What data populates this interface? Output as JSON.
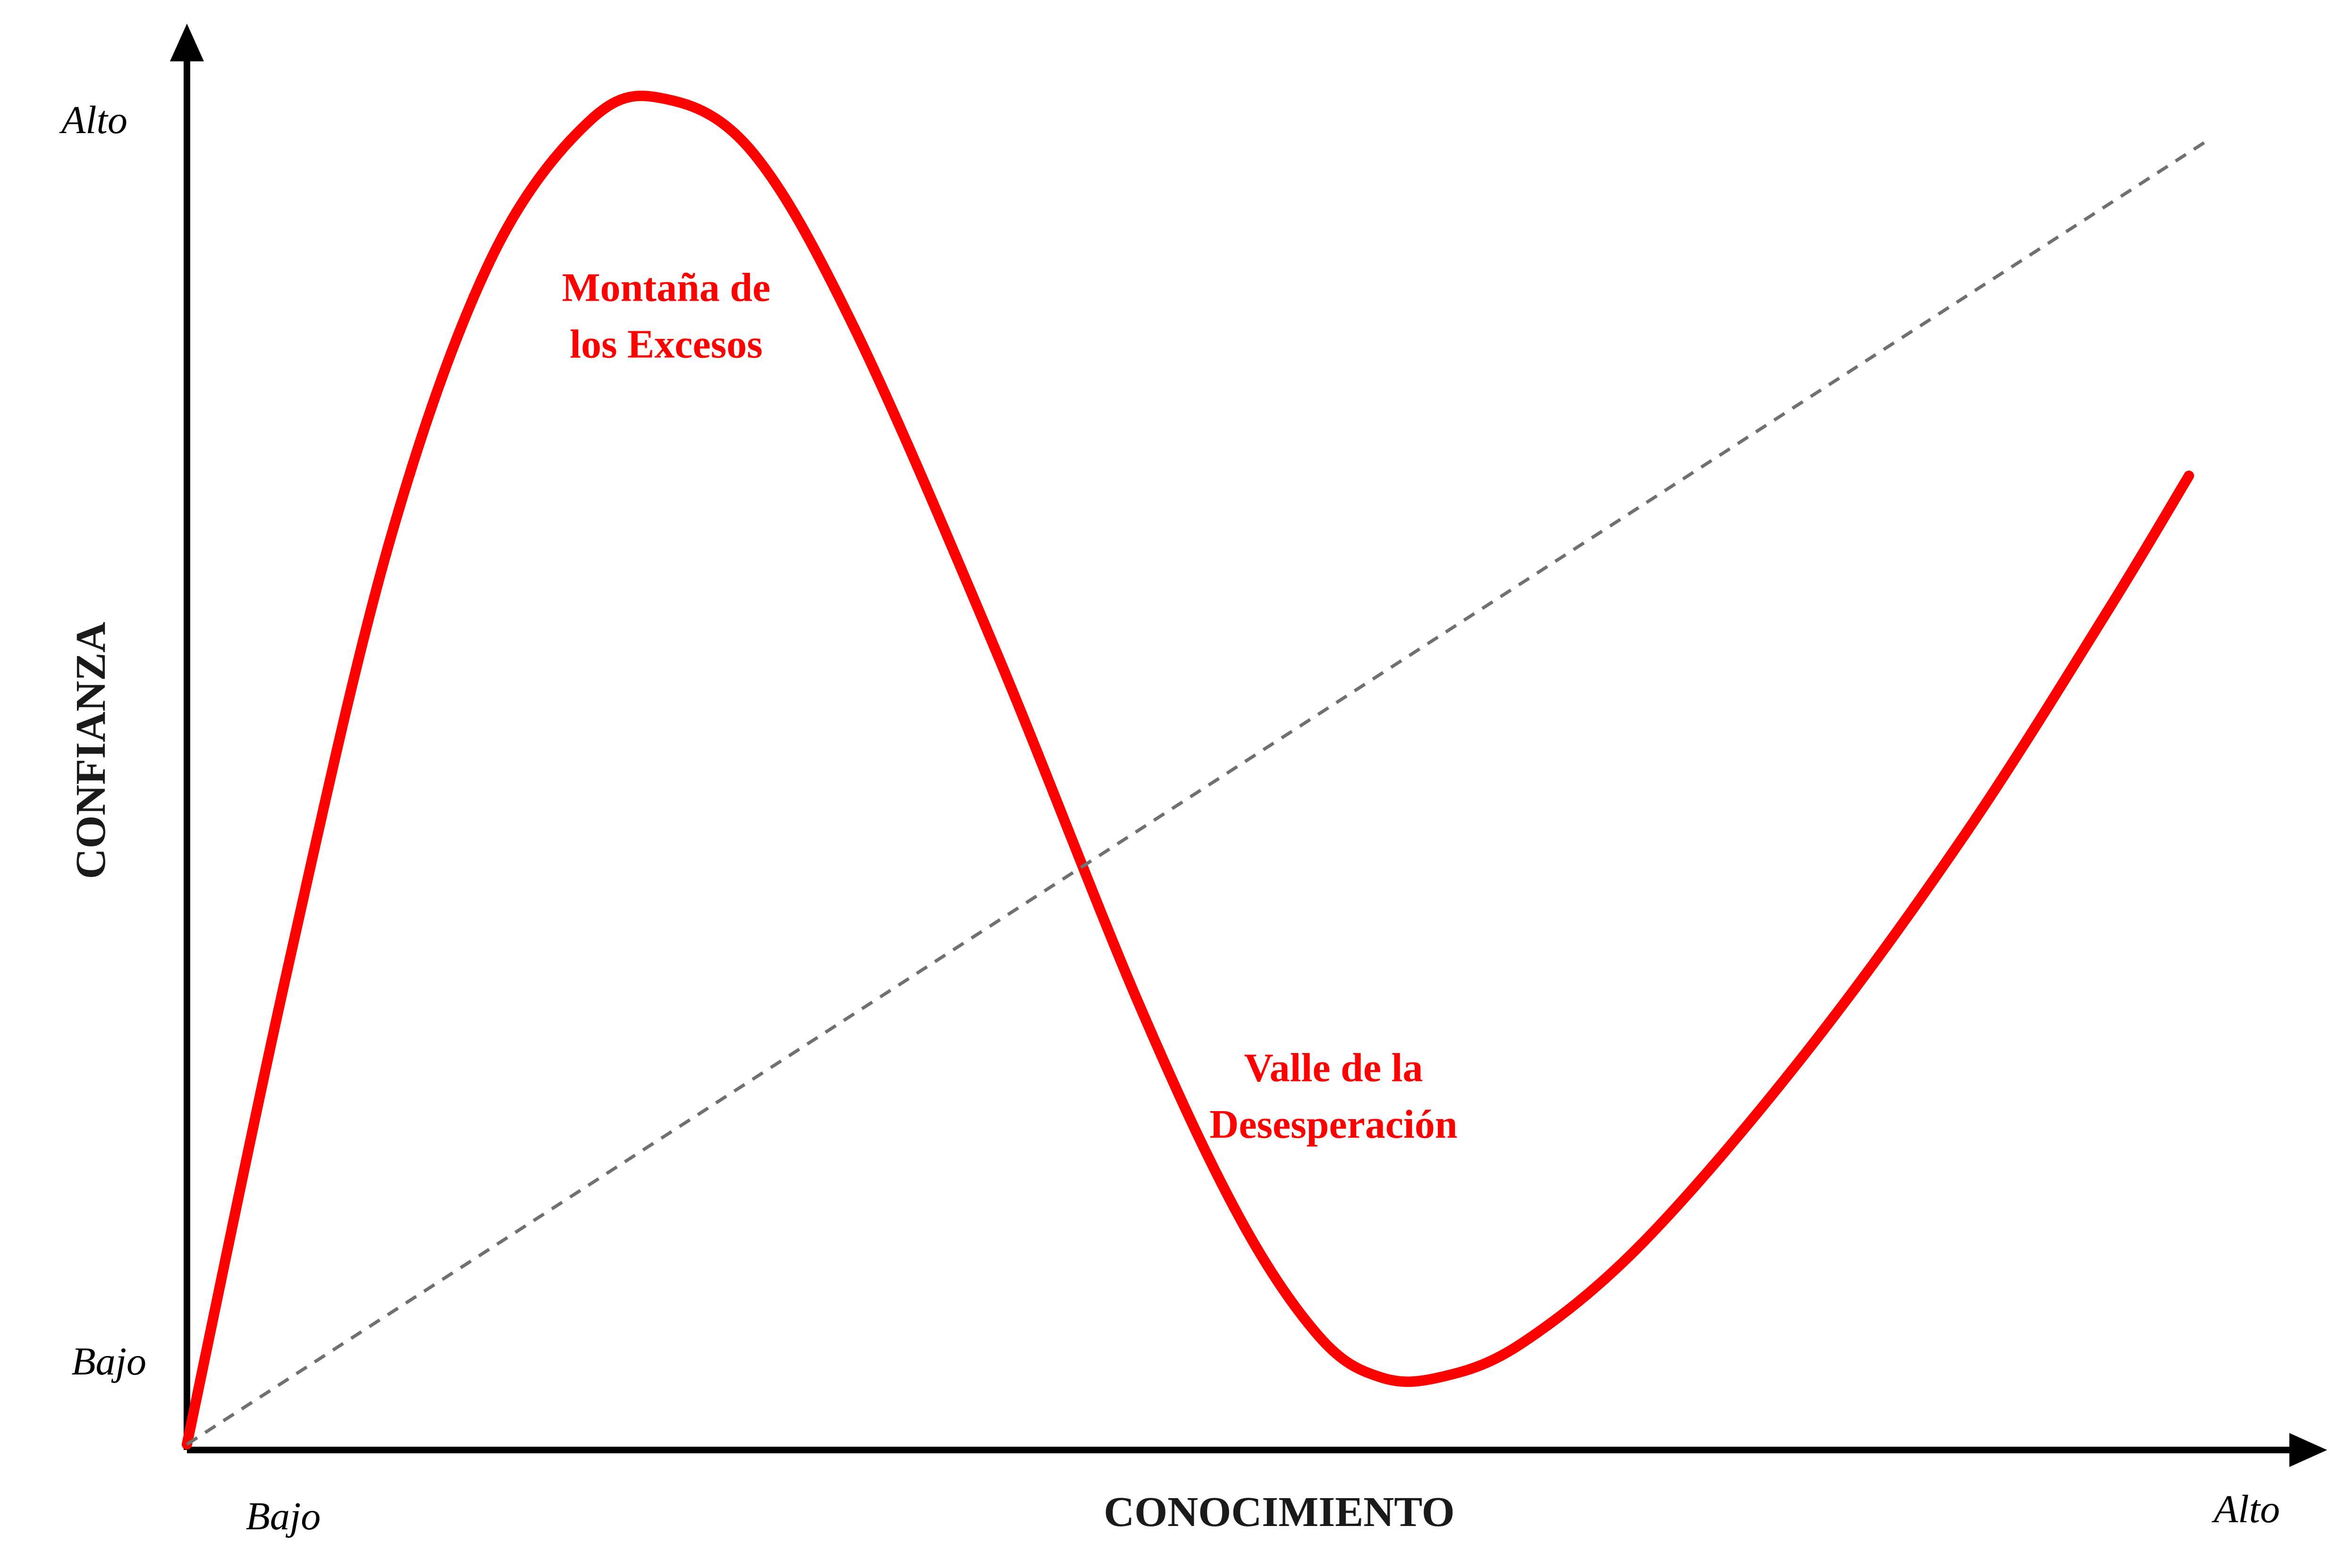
{
  "chart_data": {
    "type": "line",
    "title": "",
    "xlabel": "CONOCIMIENTO",
    "ylabel": "CONFIANZA",
    "x_ticks": {
      "low": "Bajo",
      "high": "Alto"
    },
    "y_ticks": {
      "low": "Bajo",
      "high": "Alto"
    },
    "xlim": [
      0,
      1
    ],
    "ylim": [
      0,
      1
    ],
    "grid": false,
    "series": [
      {
        "color": "#ff0000",
        "style": "solid",
        "points": [
          [
            0.0,
            0.0
          ],
          [
            0.05,
            0.355
          ],
          [
            0.1,
            0.67
          ],
          [
            0.15,
            0.88
          ],
          [
            0.2,
            0.985
          ],
          [
            0.237,
            1.0
          ],
          [
            0.28,
            0.96
          ],
          [
            0.33,
            0.83
          ],
          [
            0.4,
            0.59
          ],
          [
            0.47,
            0.33
          ],
          [
            0.52,
            0.17
          ],
          [
            0.56,
            0.08
          ],
          [
            0.59,
            0.05
          ],
          [
            0.62,
            0.05
          ],
          [
            0.66,
            0.075
          ],
          [
            0.72,
            0.15
          ],
          [
            0.8,
            0.29
          ],
          [
            0.88,
            0.455
          ],
          [
            0.95,
            0.62
          ],
          [
            0.99,
            0.72
          ]
        ]
      },
      {
        "color": "#707070",
        "style": "dashed",
        "points": [
          [
            0.0,
            0.0
          ],
          [
            1.0,
            0.97
          ]
        ]
      }
    ],
    "annotations": [
      {
        "lines": [
          "Montaña de",
          "los Excesos"
        ],
        "x": 0.237,
        "y": 0.85,
        "color": "#ff0000"
      },
      {
        "lines": [
          "Valle de la",
          "Desesperación"
        ],
        "x": 0.567,
        "y": 0.27,
        "color": "#ff0000"
      }
    ]
  }
}
